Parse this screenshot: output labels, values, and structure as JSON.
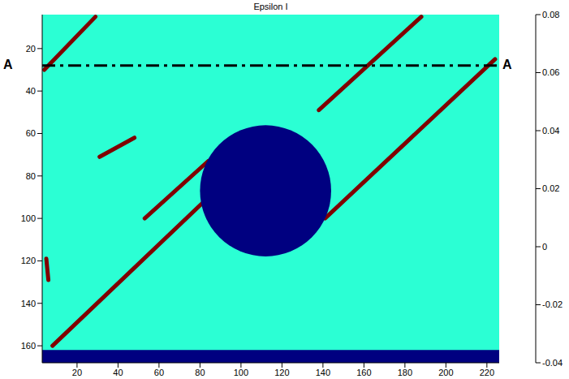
{
  "chart_data": {
    "type": "heatmap",
    "title": "Epsilon I",
    "xlim": [
      3,
      226
    ],
    "xticks": [
      20,
      40,
      60,
      80,
      100,
      120,
      140,
      160,
      180,
      200,
      220
    ],
    "ylim": [
      4,
      168
    ],
    "yticks": [
      20,
      40,
      60,
      80,
      100,
      120,
      140,
      160
    ],
    "colorbar": {
      "range": [
        -0.04,
        0.08
      ],
      "ticks": [
        -0.04,
        -0.02,
        0,
        0.02,
        0.04,
        0.06,
        0.08
      ]
    },
    "background_value": 0.01,
    "bands": [
      {
        "from": [
          4,
          30
        ],
        "to": [
          29,
          5
        ],
        "value": 0.08
      },
      {
        "from": [
          138,
          49
        ],
        "to": [
          188,
          5
        ],
        "value": 0.08
      },
      {
        "from": [
          8,
          160
        ],
        "to": [
          82,
          92
        ],
        "value": 0.08
      },
      {
        "from": [
          141,
          100
        ],
        "to": [
          224,
          25
        ],
        "value": 0.08
      },
      {
        "from": [
          53,
          100
        ],
        "to": [
          84,
          73
        ],
        "value": 0.08
      },
      {
        "from": [
          31,
          71
        ],
        "to": [
          48,
          62
        ],
        "value": 0.08
      },
      {
        "from": [
          5,
          119
        ],
        "to": [
          6,
          129
        ],
        "value": 0.08
      }
    ],
    "hole": {
      "center": [
        112,
        87
      ],
      "radius": 32,
      "value": -0.04
    },
    "regions": [
      {
        "y": [
          162,
          168
        ],
        "value": -0.04
      }
    ],
    "section": {
      "y": 28,
      "labels": [
        "A",
        "A"
      ]
    }
  }
}
